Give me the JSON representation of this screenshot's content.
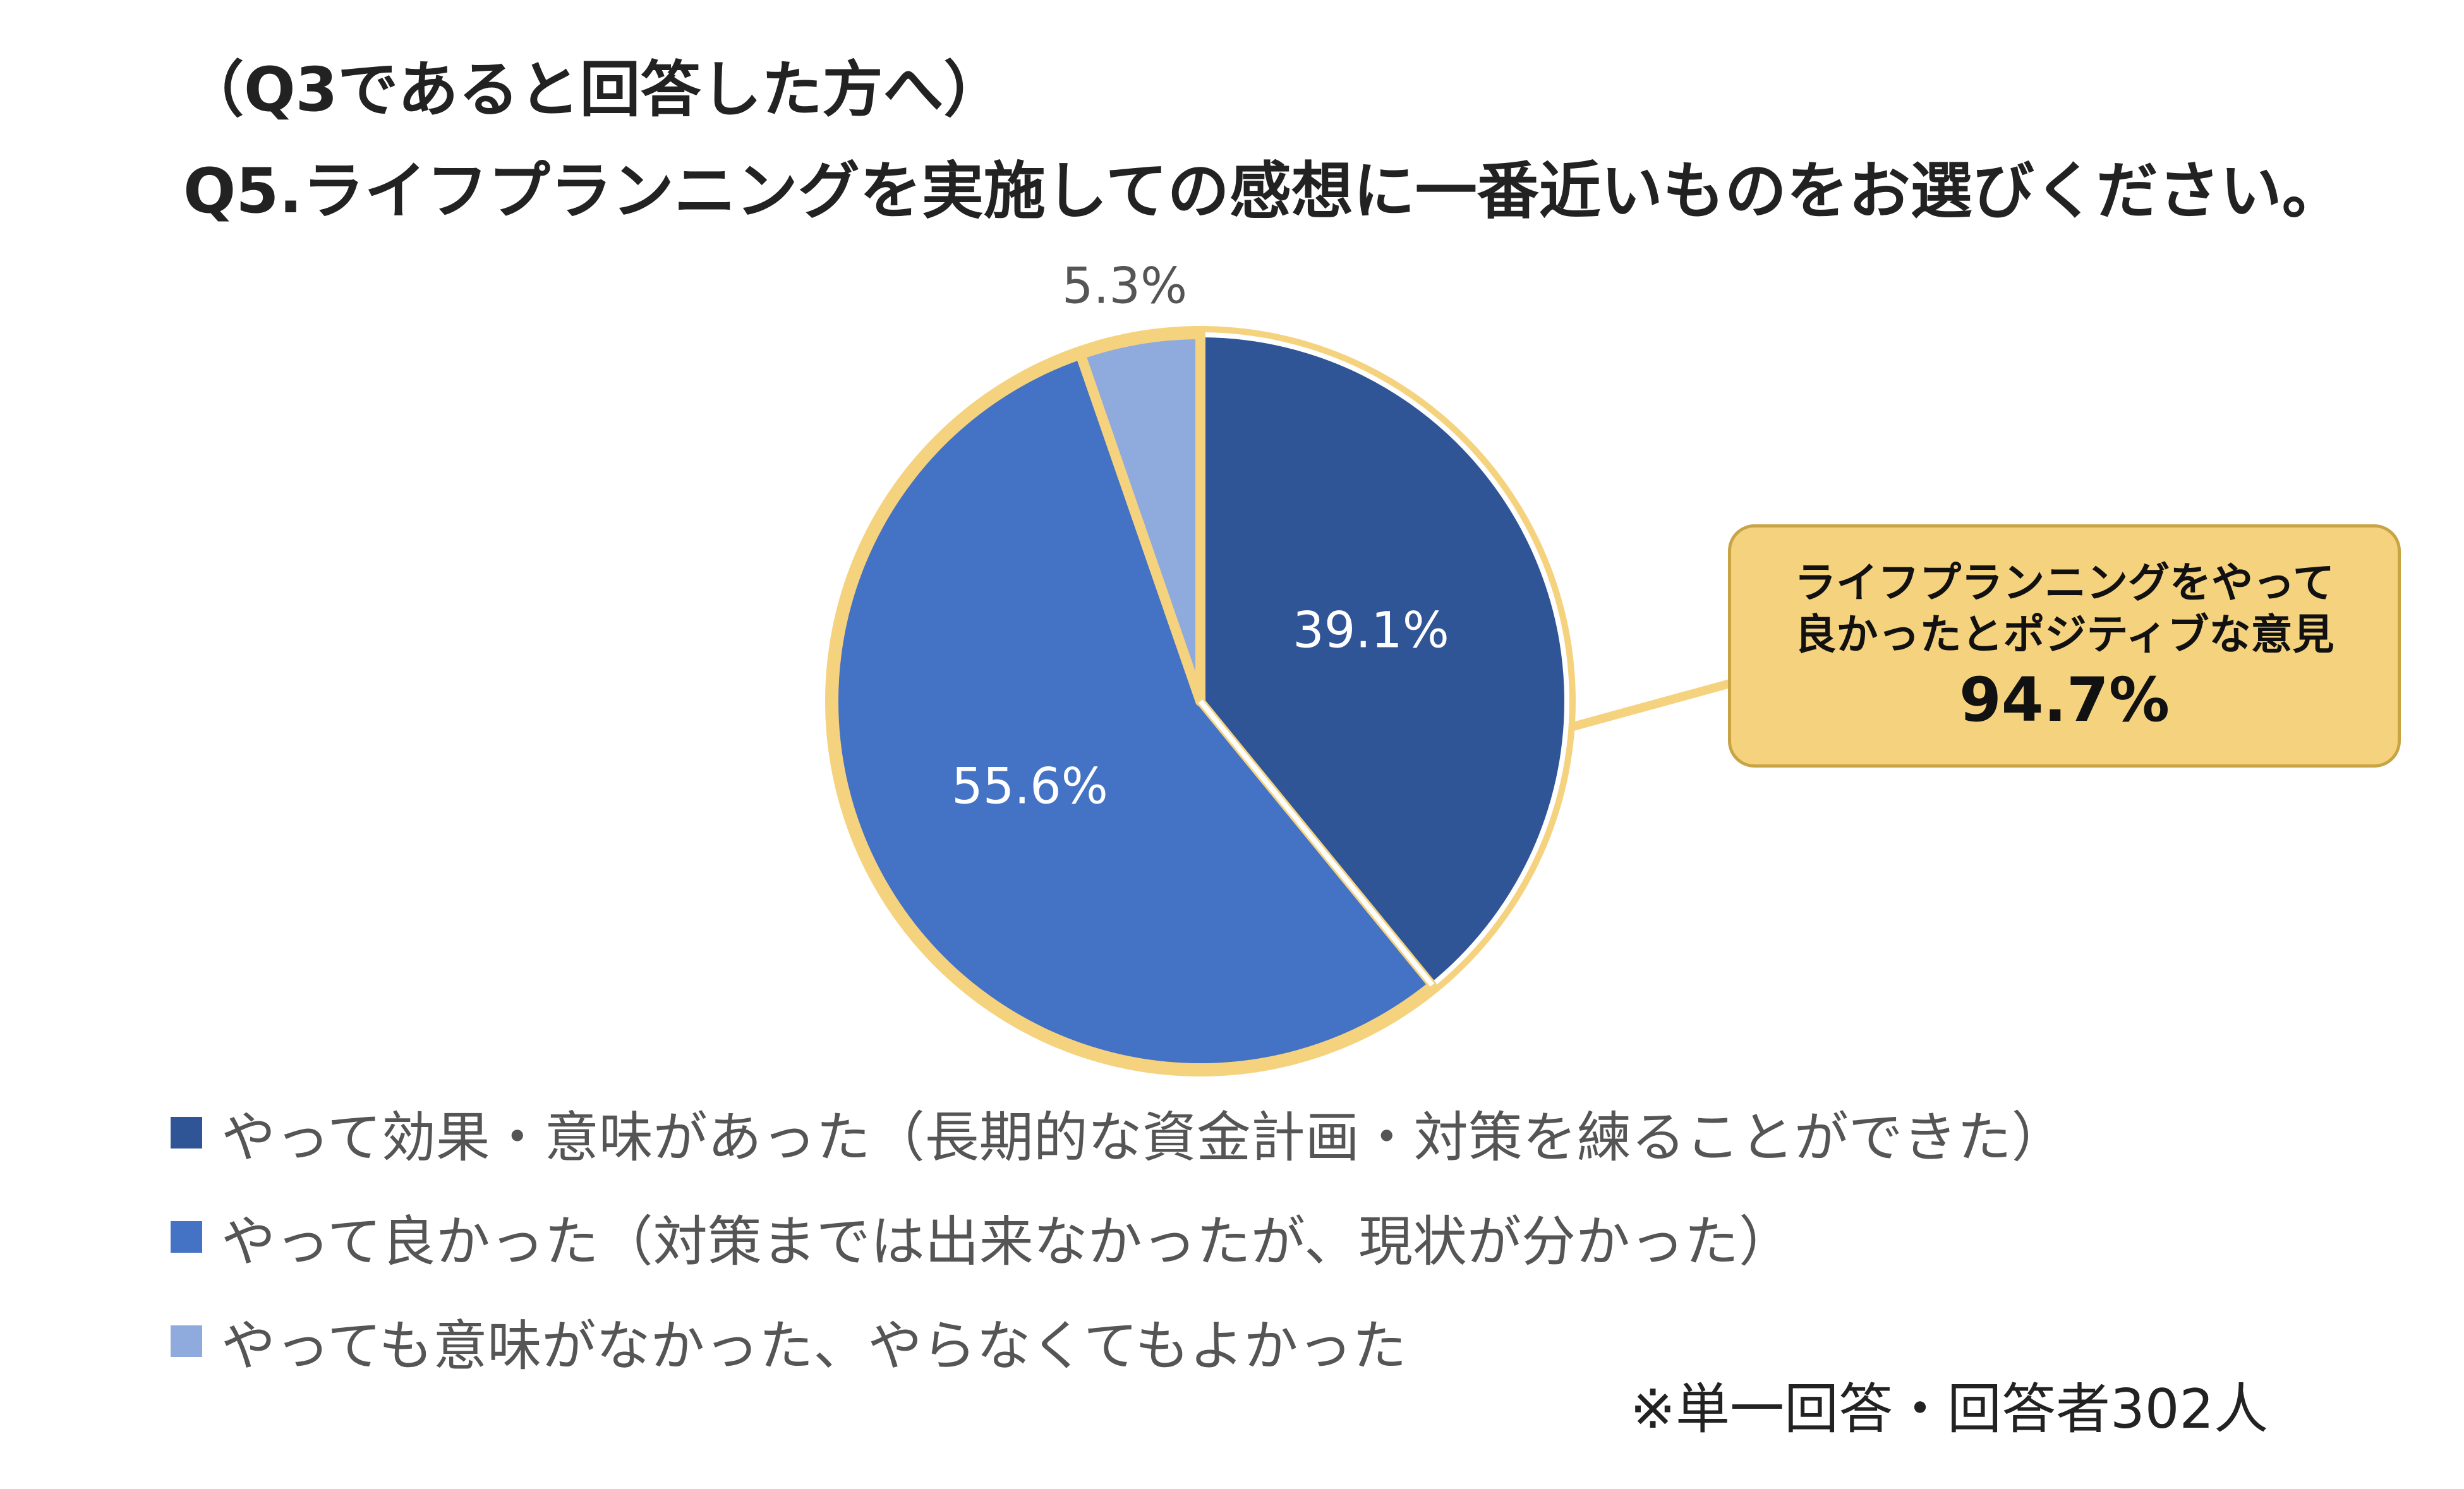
{
  "header": {
    "subtitle": "（Q3であると回答した方へ）",
    "title": "Q5.ライフプランニングを実施しての感想に一番近いものをお選びください。"
  },
  "chart_data": {
    "type": "pie",
    "title": "Q5.ライフプランニングを実施しての感想に一番近いものをお選びください。",
    "subtitle": "（Q3であると回答した方へ）",
    "slices": [
      {
        "name": "やって効果・意味があった（長期的な資金計画・対策を練ることができた）",
        "value": 39.1,
        "label": "39.1%",
        "color": "#2f5597"
      },
      {
        "name": "やって良かった（対策までは出来なかったが、現状が分かった）",
        "value": 55.6,
        "label": "55.6%",
        "color": "#4472c4"
      },
      {
        "name": "やっても意味がなかった、やらなくてもよかった",
        "value": 5.3,
        "label": "5.3%",
        "color": "#8faadc"
      }
    ],
    "start_angle": "12 o'clock",
    "direction": "clockwise",
    "highlight_border_color": "#f5d27e",
    "legend_placement": "bottom-left"
  },
  "callout": {
    "line1": "ライフプランニングをやって",
    "line2": "良かったとポジティブな意見",
    "value": "94.7%",
    "color": "#f5d27e"
  },
  "note": "※単一回答・回答者302人"
}
